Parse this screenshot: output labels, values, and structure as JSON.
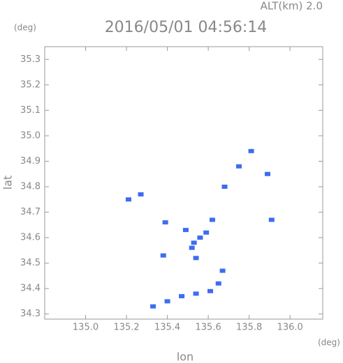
{
  "chart_data": {
    "type": "scatter",
    "title": "2016/05/01 04:56:14",
    "subtitle": "ALT(km) 2.0",
    "y_unit": "(deg)",
    "x_unit": "(deg)",
    "x_label": "lon",
    "y_label": "lat",
    "color": "#3e6cf0",
    "x": [
      135.21,
      135.27,
      135.39,
      135.38,
      135.49,
      135.52,
      135.54,
      135.59,
      135.62,
      135.75,
      135.89,
      135.91,
      135.81,
      135.68,
      135.33,
      135.4,
      135.47,
      135.54,
      135.61,
      135.65,
      135.67,
      135.56,
      135.53
    ],
    "y": [
      34.75,
      34.77,
      34.66,
      34.53,
      34.63,
      34.56,
      34.52,
      34.62,
      34.67,
      34.88,
      34.85,
      34.67,
      34.94,
      34.8,
      34.33,
      34.35,
      34.37,
      34.38,
      34.39,
      34.42,
      34.47,
      34.6,
      34.58
    ],
    "xlim": [
      134.8,
      136.16
    ],
    "ylim": [
      34.28,
      35.35
    ],
    "xticks": [
      {
        "value": 135,
        "label": "135.0"
      },
      135.2,
      135.4,
      135.6,
      135.8,
      {
        "value": 136,
        "label": "136.0"
      }
    ],
    "yticks": [
      35.3,
      35.2,
      35.1,
      {
        "value": 35,
        "label": "35.0"
      },
      34.9,
      34.8,
      34.7,
      34.6,
      34.5,
      34.4,
      34.3
    ]
  }
}
